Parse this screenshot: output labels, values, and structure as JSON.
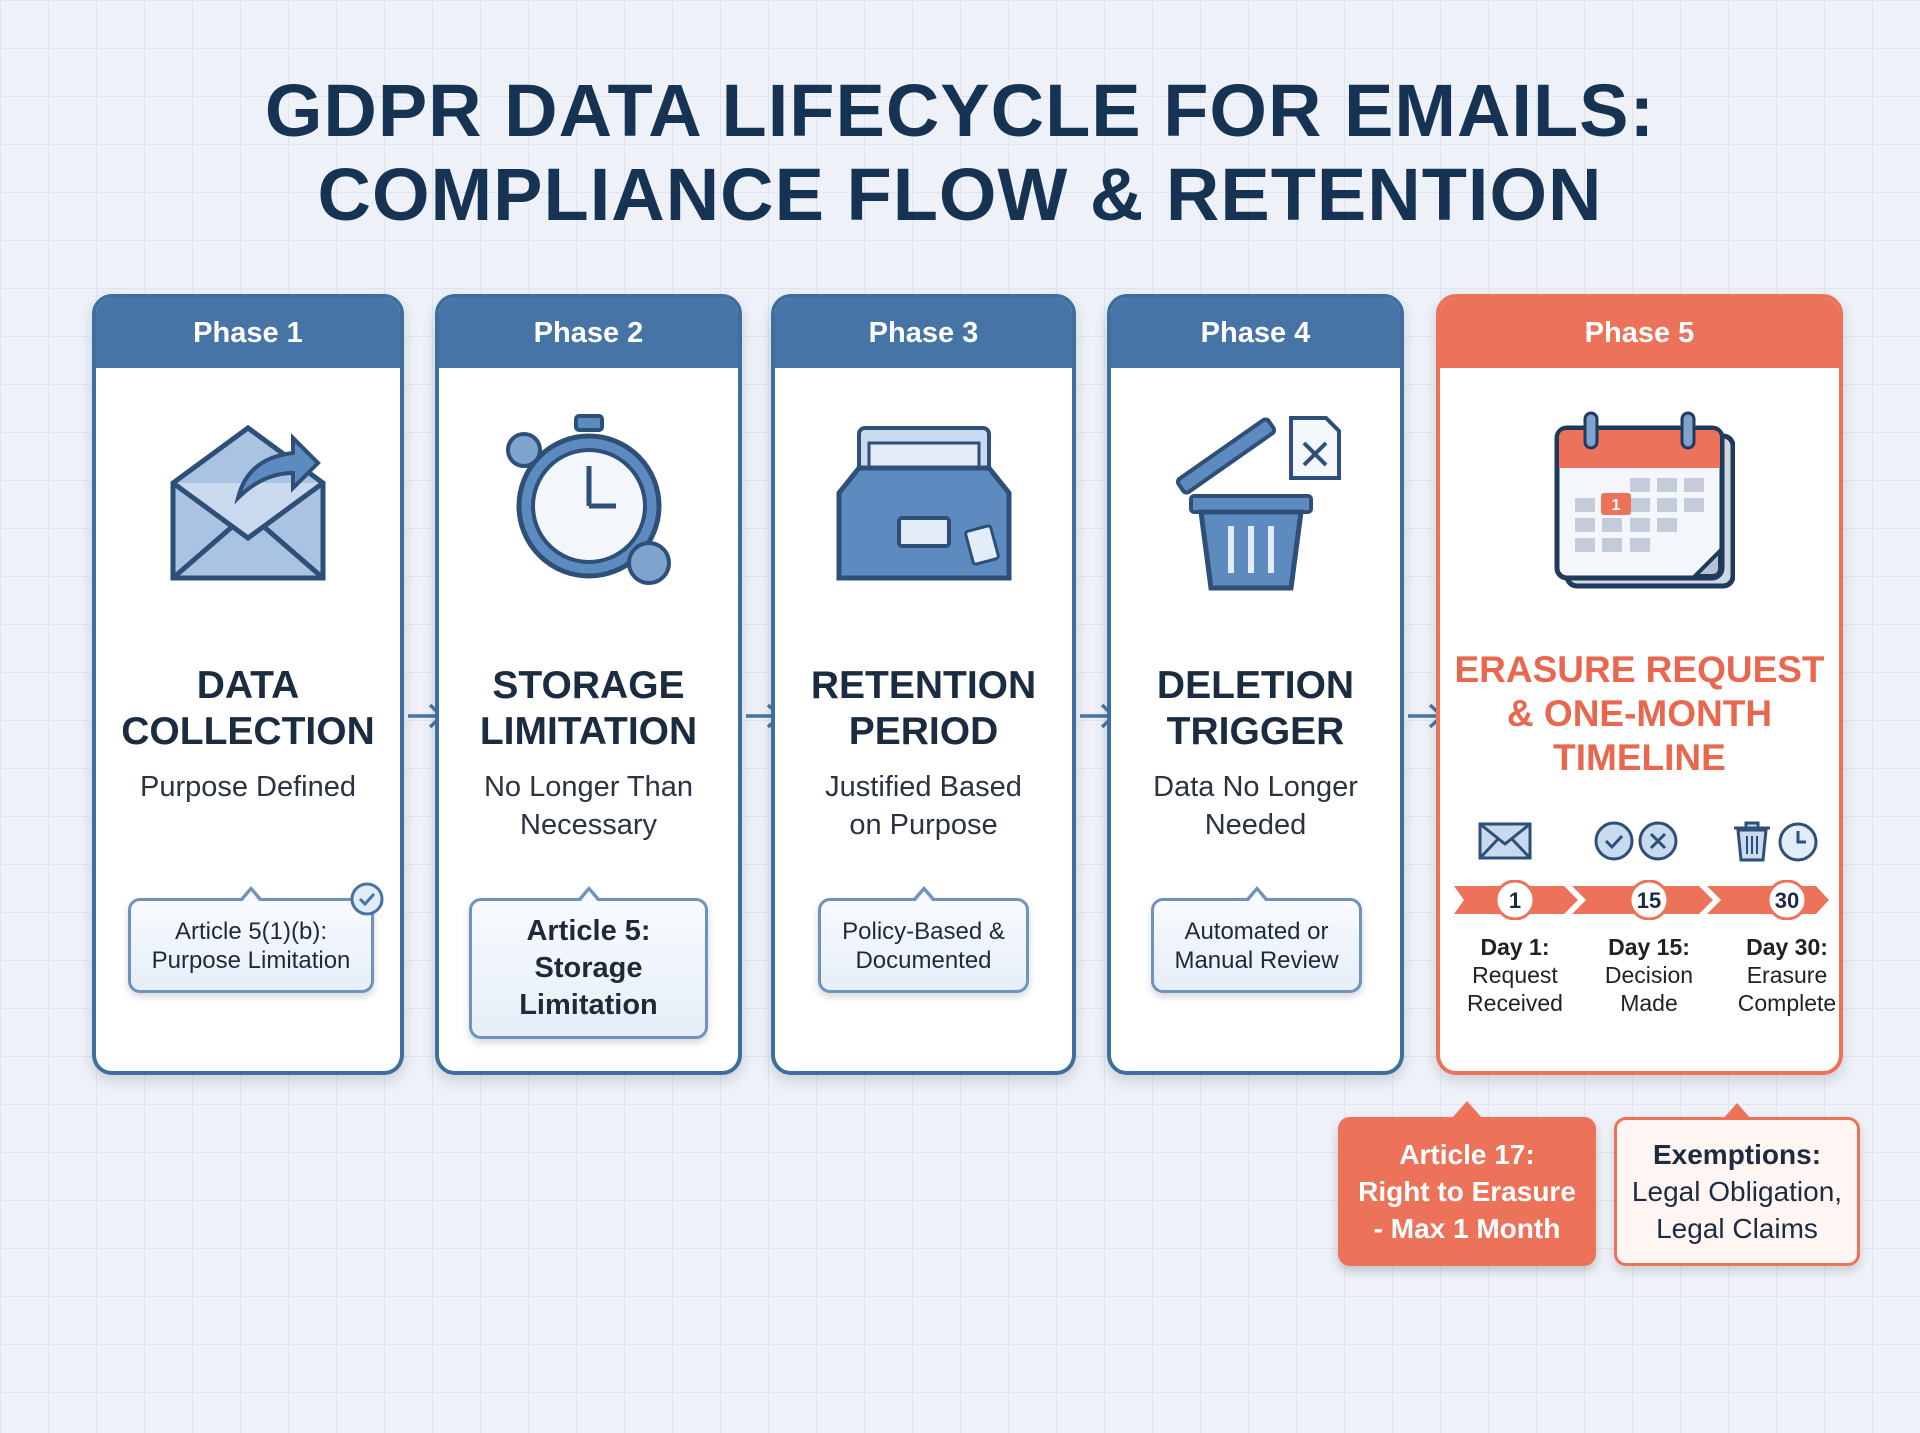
{
  "title": {
    "line1": "GDPR DATA LIFECYCLE FOR EMAILS:",
    "line2": "COMPLIANCE FLOW & RETENTION"
  },
  "colors": {
    "blue": "#4674a6",
    "coral": "#ec7359",
    "navy": "#163354"
  },
  "phases": [
    {
      "label": "Phase 1",
      "title1": "DATA",
      "title2": "COLLECTION",
      "sub1": "Purpose Defined",
      "sub2": "",
      "callout1": "Article 5(1)(b):",
      "callout2": "Purpose Limitation",
      "icon": "envelope-arrow-icon"
    },
    {
      "label": "Phase 2",
      "title1": "STORAGE",
      "title2": "LIMITATION",
      "sub1": "No Longer Than",
      "sub2": "Necessary",
      "callout1": "Article 5:",
      "callout2": "Storage",
      "callout3": "Limitation",
      "icon": "stopwatch-gears-icon"
    },
    {
      "label": "Phase 3",
      "title1": "RETENTION",
      "title2": "PERIOD",
      "sub1": "Justified Based",
      "sub2": "on Purpose",
      "callout1": "Policy-Based &",
      "callout2": "Documented",
      "icon": "file-drawer-icon"
    },
    {
      "label": "Phase 4",
      "title1": "DELETION",
      "title2": "TRIGGER",
      "sub1": "Data No Longer",
      "sub2": "Needed",
      "callout1": "Automated or",
      "callout2": "Manual Review",
      "icon": "trash-can-icon"
    },
    {
      "label": "Phase 5",
      "title1": "ERASURE REQUEST",
      "title2": "& ONE-MONTH",
      "title3": "TIMELINE",
      "icon": "calendar-icon",
      "calendar_day": "1",
      "steps": [
        {
          "num": "1",
          "day": "Day 1:",
          "d1": "Request",
          "d2": "Received"
        },
        {
          "num": "15",
          "day": "Day 15:",
          "d1": "Decision",
          "d2": "Made"
        },
        {
          "num": "30",
          "day": "Day 30:",
          "d1": "Erasure",
          "d2": "Complete"
        }
      ]
    }
  ],
  "notes": {
    "article17": [
      "Article 17:",
      "Right to Erasure",
      "- Max 1 Month"
    ],
    "exemptions": [
      "Exemptions:",
      "Legal Obligation,",
      "Legal Claims"
    ]
  }
}
